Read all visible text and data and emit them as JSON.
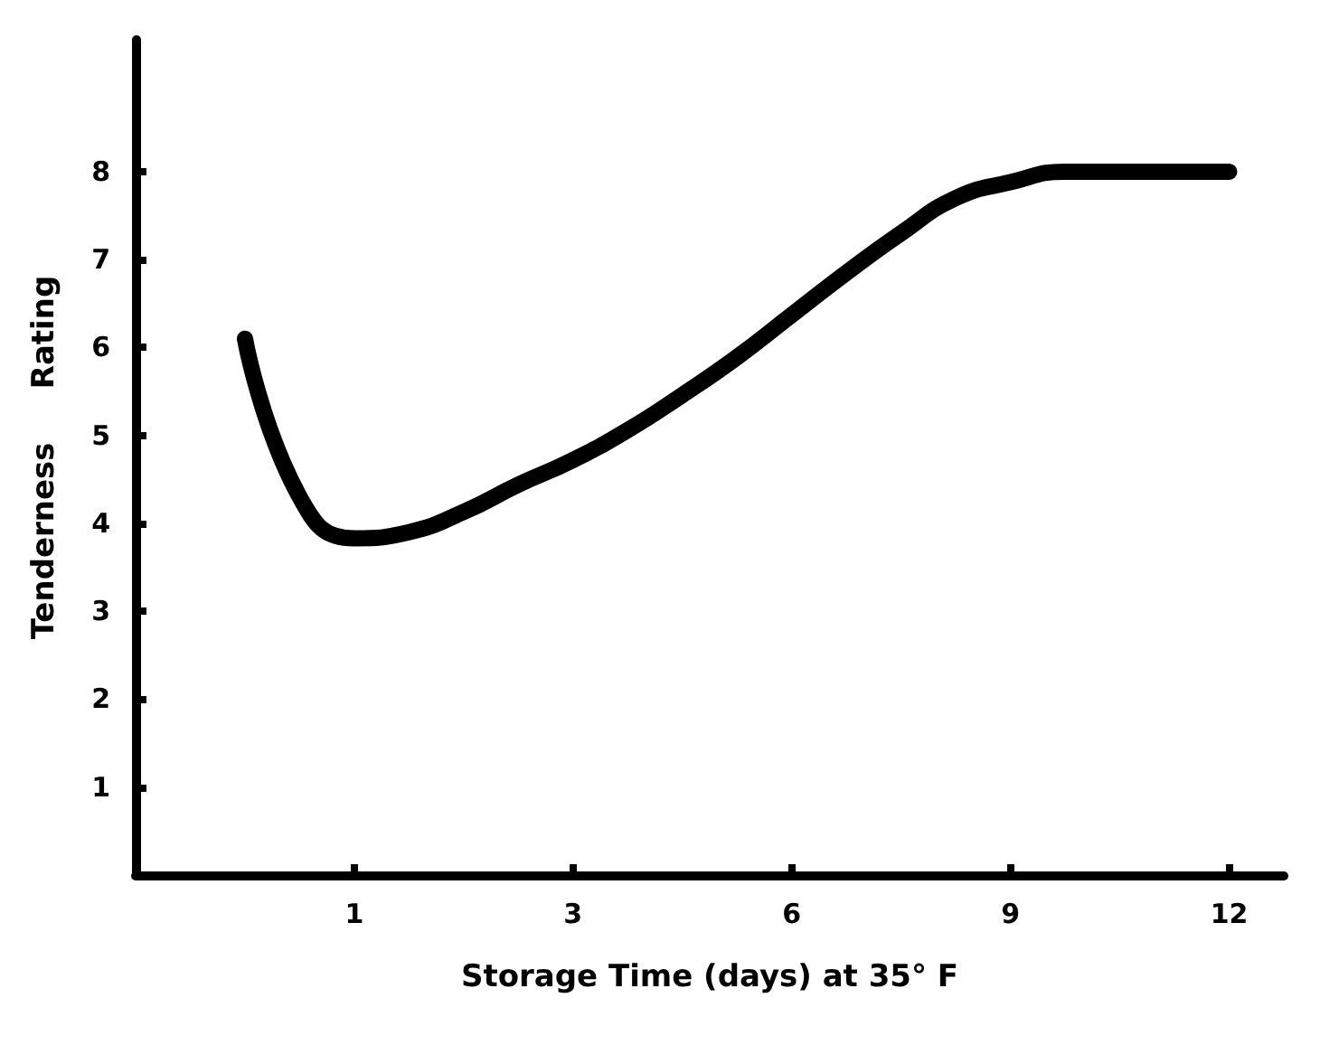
{
  "chart_data": {
    "type": "line",
    "xlabel": "Storage Time (days) at 35° F",
    "ylabel": "Tenderness     Rating",
    "categories": [
      null,
      null,
      null,
      null,
      "1",
      null,
      null,
      null,
      "3",
      null,
      null,
      null,
      "6",
      null,
      null,
      null,
      "9",
      null,
      null,
      null,
      "12",
      null
    ],
    "series": [
      {
        "color": "#000000",
        "values": [
          null,
          null,
          6.1,
          4.3,
          3.83,
          3.9,
          4.13,
          4.44,
          4.72,
          5.06,
          5.46,
          5.89,
          6.37,
          6.85,
          7.3,
          7.7,
          7.88,
          8.0,
          8.0,
          8.0,
          8.0,
          null
        ]
      }
    ],
    "ylim": [
      0,
      9.5
    ],
    "yticks": [
      1,
      2,
      3,
      4,
      5,
      6,
      7,
      8
    ],
    "grid": false,
    "line_style": "solid"
  }
}
